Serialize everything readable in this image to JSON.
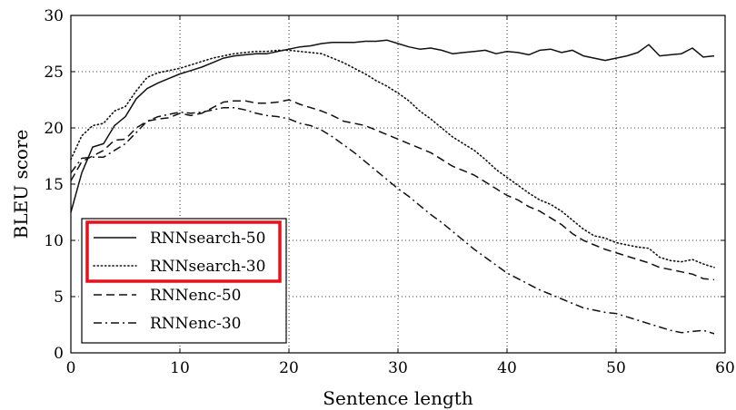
{
  "chart_data": {
    "type": "line",
    "title": "",
    "xlabel": "Sentence length",
    "ylabel": "BLEU score",
    "xlim": [
      0,
      60
    ],
    "ylim": [
      0,
      30
    ],
    "xticks": [
      0,
      10,
      20,
      30,
      40,
      50,
      60
    ],
    "yticks": [
      0,
      5,
      10,
      15,
      20,
      25,
      30
    ],
    "grid": true,
    "legend_position": "bottom-left",
    "highlight_color": "#e8101a",
    "series": [
      {
        "name": "RNNsearch-50",
        "style": "solid",
        "highlighted": true,
        "points": [
          [
            0,
            12.5
          ],
          [
            1,
            16.0
          ],
          [
            2,
            18.3
          ],
          [
            3,
            18.6
          ],
          [
            4,
            20.2
          ],
          [
            5,
            21.0
          ],
          [
            6,
            22.6
          ],
          [
            7,
            23.5
          ],
          [
            8,
            24.0
          ],
          [
            9,
            24.4
          ],
          [
            10,
            24.8
          ],
          [
            11,
            25.1
          ],
          [
            12,
            25.4
          ],
          [
            13,
            25.8
          ],
          [
            14,
            26.2
          ],
          [
            15,
            26.4
          ],
          [
            16,
            26.5
          ],
          [
            17,
            26.6
          ],
          [
            18,
            26.6
          ],
          [
            19,
            26.8
          ],
          [
            20,
            27.0
          ],
          [
            21,
            27.2
          ],
          [
            22,
            27.3
          ],
          [
            23,
            27.5
          ],
          [
            24,
            27.6
          ],
          [
            25,
            27.6
          ],
          [
            26,
            27.6
          ],
          [
            27,
            27.7
          ],
          [
            28,
            27.7
          ],
          [
            29,
            27.8
          ],
          [
            30,
            27.5
          ],
          [
            31,
            27.2
          ],
          [
            32,
            27.0
          ],
          [
            33,
            27.1
          ],
          [
            34,
            26.9
          ],
          [
            35,
            26.6
          ],
          [
            36,
            26.7
          ],
          [
            37,
            26.8
          ],
          [
            38,
            26.9
          ],
          [
            39,
            26.6
          ],
          [
            40,
            26.8
          ],
          [
            41,
            26.7
          ],
          [
            42,
            26.5
          ],
          [
            43,
            26.9
          ],
          [
            44,
            27.0
          ],
          [
            45,
            26.7
          ],
          [
            46,
            26.9
          ],
          [
            47,
            26.4
          ],
          [
            48,
            26.2
          ],
          [
            49,
            26.0
          ],
          [
            50,
            26.2
          ],
          [
            51,
            26.4
          ],
          [
            52,
            26.7
          ],
          [
            53,
            27.4
          ],
          [
            54,
            26.4
          ],
          [
            55,
            26.5
          ],
          [
            56,
            26.6
          ],
          [
            57,
            27.1
          ],
          [
            58,
            26.3
          ],
          [
            59,
            26.4
          ]
        ]
      },
      {
        "name": "RNNsearch-30",
        "style": "dotted",
        "highlighted": true,
        "points": [
          [
            0,
            17.2
          ],
          [
            1,
            19.3
          ],
          [
            2,
            20.2
          ],
          [
            3,
            20.4
          ],
          [
            4,
            21.5
          ],
          [
            5,
            21.9
          ],
          [
            6,
            23.3
          ],
          [
            7,
            24.5
          ],
          [
            8,
            24.9
          ],
          [
            9,
            25.1
          ],
          [
            10,
            25.3
          ],
          [
            11,
            25.6
          ],
          [
            12,
            25.9
          ],
          [
            13,
            26.2
          ],
          [
            14,
            26.4
          ],
          [
            15,
            26.6
          ],
          [
            16,
            26.7
          ],
          [
            17,
            26.8
          ],
          [
            18,
            26.8
          ],
          [
            19,
            26.9
          ],
          [
            20,
            26.9
          ],
          [
            21,
            26.8
          ],
          [
            22,
            26.7
          ],
          [
            23,
            26.6
          ],
          [
            24,
            26.2
          ],
          [
            25,
            25.8
          ],
          [
            26,
            25.3
          ],
          [
            27,
            24.8
          ],
          [
            28,
            24.2
          ],
          [
            29,
            23.7
          ],
          [
            30,
            23.1
          ],
          [
            31,
            22.4
          ],
          [
            32,
            21.5
          ],
          [
            33,
            20.8
          ],
          [
            34,
            20.0
          ],
          [
            35,
            19.2
          ],
          [
            36,
            18.6
          ],
          [
            37,
            18.0
          ],
          [
            38,
            17.2
          ],
          [
            39,
            16.3
          ],
          [
            40,
            15.6
          ],
          [
            41,
            14.9
          ],
          [
            42,
            14.2
          ],
          [
            43,
            13.6
          ],
          [
            44,
            13.2
          ],
          [
            45,
            12.6
          ],
          [
            46,
            11.8
          ],
          [
            47,
            11.0
          ],
          [
            48,
            10.4
          ],
          [
            49,
            10.2
          ],
          [
            50,
            9.8
          ],
          [
            51,
            9.6
          ],
          [
            52,
            9.4
          ],
          [
            53,
            9.3
          ],
          [
            54,
            8.5
          ],
          [
            55,
            8.2
          ],
          [
            56,
            8.1
          ],
          [
            57,
            8.3
          ],
          [
            58,
            7.9
          ],
          [
            59,
            7.6
          ]
        ]
      },
      {
        "name": "RNNenc-50",
        "style": "dashed",
        "highlighted": false,
        "points": [
          [
            0,
            15.3
          ],
          [
            1,
            17.0
          ],
          [
            2,
            17.5
          ],
          [
            3,
            18.0
          ],
          [
            4,
            18.9
          ],
          [
            5,
            19.0
          ],
          [
            6,
            20.0
          ],
          [
            7,
            20.6
          ],
          [
            8,
            20.8
          ],
          [
            9,
            20.9
          ],
          [
            10,
            21.3
          ],
          [
            11,
            21.1
          ],
          [
            12,
            21.3
          ],
          [
            13,
            21.8
          ],
          [
            14,
            22.3
          ],
          [
            15,
            22.4
          ],
          [
            16,
            22.4
          ],
          [
            17,
            22.2
          ],
          [
            18,
            22.2
          ],
          [
            19,
            22.3
          ],
          [
            20,
            22.5
          ],
          [
            21,
            22.1
          ],
          [
            22,
            21.8
          ],
          [
            23,
            21.5
          ],
          [
            24,
            21.1
          ],
          [
            25,
            20.6
          ],
          [
            26,
            20.4
          ],
          [
            27,
            20.2
          ],
          [
            28,
            19.8
          ],
          [
            29,
            19.4
          ],
          [
            30,
            19.0
          ],
          [
            31,
            18.6
          ],
          [
            32,
            18.2
          ],
          [
            33,
            17.8
          ],
          [
            34,
            17.2
          ],
          [
            35,
            16.6
          ],
          [
            36,
            16.2
          ],
          [
            37,
            15.8
          ],
          [
            38,
            15.2
          ],
          [
            39,
            14.6
          ],
          [
            40,
            14.0
          ],
          [
            41,
            13.6
          ],
          [
            42,
            13.0
          ],
          [
            43,
            12.6
          ],
          [
            44,
            12.0
          ],
          [
            45,
            11.4
          ],
          [
            46,
            10.6
          ],
          [
            47,
            10.0
          ],
          [
            48,
            9.6
          ],
          [
            49,
            9.2
          ],
          [
            50,
            8.9
          ],
          [
            51,
            8.6
          ],
          [
            52,
            8.3
          ],
          [
            53,
            8.0
          ],
          [
            54,
            7.6
          ],
          [
            55,
            7.4
          ],
          [
            56,
            7.2
          ],
          [
            57,
            7.0
          ],
          [
            58,
            6.6
          ],
          [
            59,
            6.5
          ]
        ]
      },
      {
        "name": "RNNenc-30",
        "style": "dashdot",
        "highlighted": false,
        "points": [
          [
            0,
            16.0
          ],
          [
            1,
            17.3
          ],
          [
            2,
            17.4
          ],
          [
            3,
            17.4
          ],
          [
            4,
            18.0
          ],
          [
            5,
            18.6
          ],
          [
            6,
            19.6
          ],
          [
            7,
            20.6
          ],
          [
            8,
            21.0
          ],
          [
            9,
            21.2
          ],
          [
            10,
            21.4
          ],
          [
            11,
            21.3
          ],
          [
            12,
            21.4
          ],
          [
            13,
            21.6
          ],
          [
            14,
            21.8
          ],
          [
            15,
            21.8
          ],
          [
            16,
            21.6
          ],
          [
            17,
            21.3
          ],
          [
            18,
            21.1
          ],
          [
            19,
            21.0
          ],
          [
            20,
            20.8
          ],
          [
            21,
            20.4
          ],
          [
            22,
            20.2
          ],
          [
            23,
            19.8
          ],
          [
            24,
            19.2
          ],
          [
            25,
            18.5
          ],
          [
            26,
            17.8
          ],
          [
            27,
            17.0
          ],
          [
            28,
            16.2
          ],
          [
            29,
            15.4
          ],
          [
            30,
            14.6
          ],
          [
            31,
            13.9
          ],
          [
            32,
            13.1
          ],
          [
            33,
            12.3
          ],
          [
            34,
            11.6
          ],
          [
            35,
            10.8
          ],
          [
            36,
            10.0
          ],
          [
            37,
            9.2
          ],
          [
            38,
            8.5
          ],
          [
            39,
            7.8
          ],
          [
            40,
            7.1
          ],
          [
            41,
            6.6
          ],
          [
            42,
            6.1
          ],
          [
            43,
            5.6
          ],
          [
            44,
            5.2
          ],
          [
            45,
            4.8
          ],
          [
            46,
            4.4
          ],
          [
            47,
            4.0
          ],
          [
            48,
            3.8
          ],
          [
            49,
            3.6
          ],
          [
            50,
            3.5
          ],
          [
            51,
            3.2
          ],
          [
            52,
            2.9
          ],
          [
            53,
            2.6
          ],
          [
            54,
            2.3
          ],
          [
            55,
            2.0
          ],
          [
            56,
            1.8
          ],
          [
            57,
            1.9
          ],
          [
            58,
            2.0
          ],
          [
            59,
            1.7
          ]
        ]
      }
    ]
  }
}
